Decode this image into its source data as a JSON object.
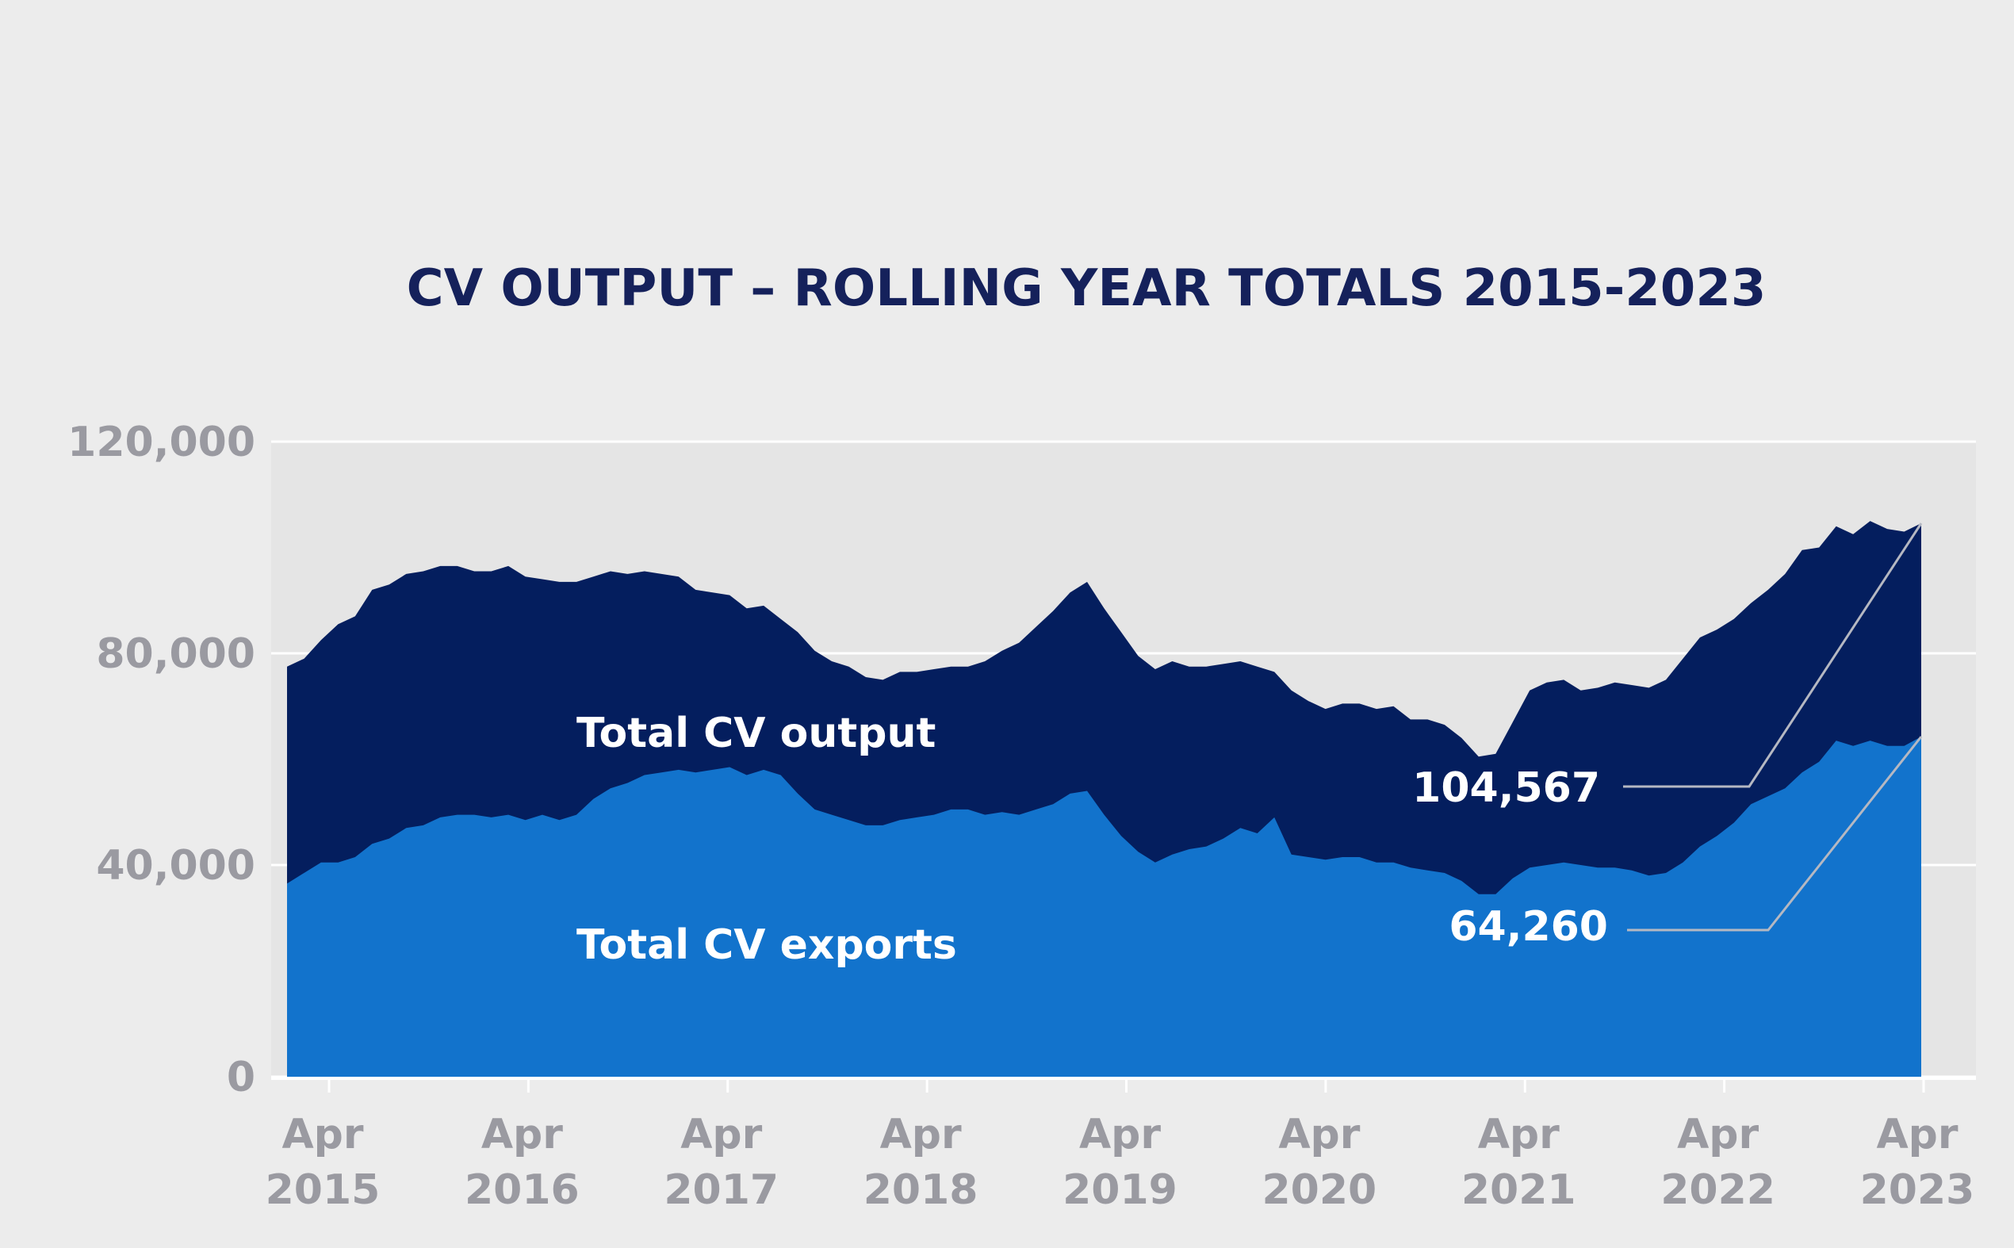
{
  "colors": {
    "background": "#ececec",
    "plot_background": "#e5e5e5",
    "gridline": "#ffffff",
    "title": "#15215b",
    "tick": "#9a9aa1",
    "output_area": "#041e5e",
    "exports_area": "#1273cc",
    "leader_line": "#b5b8c2"
  },
  "chart_data": {
    "type": "area",
    "title": "CV OUTPUT – ROLLING YEAR TOTALS 2015-2023",
    "xlabel": "",
    "ylabel": "",
    "ylim": [
      0,
      120000
    ],
    "xlim": [
      "2015-02",
      "2023-05"
    ],
    "y_ticks": [
      {
        "value": 0,
        "label": "0"
      },
      {
        "value": 40000,
        "label": "40,000"
      },
      {
        "value": 80000,
        "label": "80,000"
      },
      {
        "value": 120000,
        "label": "120,000"
      }
    ],
    "x_ticks": [
      {
        "date": "2015-04",
        "line1": "Apr",
        "line2": "2015"
      },
      {
        "date": "2016-04",
        "line1": "Apr",
        "line2": "2016"
      },
      {
        "date": "2017-04",
        "line1": "Apr",
        "line2": "2017"
      },
      {
        "date": "2018-04",
        "line1": "Apr",
        "line2": "2018"
      },
      {
        "date": "2019-04",
        "line1": "Apr",
        "line2": "2019"
      },
      {
        "date": "2020-04",
        "line1": "Apr",
        "line2": "2020"
      },
      {
        "date": "2021-04",
        "line1": "Apr",
        "line2": "2021"
      },
      {
        "date": "2022-04",
        "line1": "Apr",
        "line2": "2022"
      },
      {
        "date": "2023-04",
        "line1": "Apr",
        "line2": "2023"
      }
    ],
    "grid": true,
    "legend": "none",
    "series": [
      {
        "name": "Total CV output",
        "color": "#041e5e",
        "points": [
          [
            "2015-02",
            77500
          ],
          [
            "2015-03",
            79000
          ],
          [
            "2015-04",
            82500
          ],
          [
            "2015-05",
            85500
          ],
          [
            "2015-06",
            87000
          ],
          [
            "2015-07",
            92000
          ],
          [
            "2015-08",
            93000
          ],
          [
            "2015-09",
            95000
          ],
          [
            "2015-10",
            95500
          ],
          [
            "2015-11",
            96500
          ],
          [
            "2015-12",
            96500
          ],
          [
            "2016-01",
            95500
          ],
          [
            "2016-02",
            95500
          ],
          [
            "2016-03",
            96500
          ],
          [
            "2016-04",
            94500
          ],
          [
            "2016-05",
            94000
          ],
          [
            "2016-06",
            93500
          ],
          [
            "2016-07",
            93500
          ],
          [
            "2016-08",
            94500
          ],
          [
            "2016-09",
            95500
          ],
          [
            "2016-10",
            95000
          ],
          [
            "2016-11",
            95500
          ],
          [
            "2016-12",
            95000
          ],
          [
            "2017-01",
            94500
          ],
          [
            "2017-02",
            92000
          ],
          [
            "2017-03",
            91500
          ],
          [
            "2017-04",
            91000
          ],
          [
            "2017-05",
            88500
          ],
          [
            "2017-06",
            89000
          ],
          [
            "2017-07",
            86500
          ],
          [
            "2017-08",
            84000
          ],
          [
            "2017-09",
            80500
          ],
          [
            "2017-10",
            78500
          ],
          [
            "2017-11",
            77500
          ],
          [
            "2017-12",
            75500
          ],
          [
            "2018-01",
            75000
          ],
          [
            "2018-02",
            76500
          ],
          [
            "2018-03",
            76500
          ],
          [
            "2018-04",
            77000
          ],
          [
            "2018-05",
            77500
          ],
          [
            "2018-06",
            77500
          ],
          [
            "2018-07",
            78500
          ],
          [
            "2018-08",
            80500
          ],
          [
            "2018-09",
            82000
          ],
          [
            "2018-10",
            85000
          ],
          [
            "2018-11",
            88000
          ],
          [
            "2018-12",
            91500
          ],
          [
            "2019-01",
            93500
          ],
          [
            "2019-02",
            88500
          ],
          [
            "2019-03",
            84000
          ],
          [
            "2019-04",
            79500
          ],
          [
            "2019-05",
            77000
          ],
          [
            "2019-06",
            78500
          ],
          [
            "2019-07",
            77500
          ],
          [
            "2019-08",
            77500
          ],
          [
            "2019-09",
            78000
          ],
          [
            "2019-10",
            78500
          ],
          [
            "2019-11",
            77500
          ],
          [
            "2019-12",
            76500
          ],
          [
            "2020-01",
            73000
          ],
          [
            "2020-02",
            71000
          ],
          [
            "2020-03",
            69500
          ],
          [
            "2020-04",
            70500
          ],
          [
            "2020-05",
            70500
          ],
          [
            "2020-06",
            69500
          ],
          [
            "2020-07",
            70000
          ],
          [
            "2020-08",
            67500
          ],
          [
            "2020-09",
            67500
          ],
          [
            "2020-10",
            66500
          ],
          [
            "2020-11",
            64000
          ],
          [
            "2020-12",
            60500
          ],
          [
            "2021-01",
            61000
          ],
          [
            "2021-02",
            67000
          ],
          [
            "2021-03",
            73000
          ],
          [
            "2021-04",
            74500
          ],
          [
            "2021-05",
            75000
          ],
          [
            "2021-06",
            73000
          ],
          [
            "2021-07",
            73500
          ],
          [
            "2021-08",
            74500
          ],
          [
            "2021-09",
            74000
          ],
          [
            "2021-10",
            73500
          ],
          [
            "2021-11",
            75000
          ],
          [
            "2021-12",
            79000
          ],
          [
            "2022-01",
            83000
          ],
          [
            "2022-02",
            84500
          ],
          [
            "2022-03",
            86500
          ],
          [
            "2022-04",
            89500
          ],
          [
            "2022-05",
            92000
          ],
          [
            "2022-06",
            95000
          ],
          [
            "2022-07",
            99500
          ],
          [
            "2022-08",
            100000
          ],
          [
            "2022-09",
            104000
          ],
          [
            "2022-10",
            102500
          ],
          [
            "2022-11",
            105000
          ],
          [
            "2022-12",
            103500
          ],
          [
            "2023-01",
            103000
          ],
          [
            "2023-02",
            104567
          ]
        ]
      },
      {
        "name": "Total CV exports",
        "color": "#1273cc",
        "points": [
          [
            "2015-02",
            36500
          ],
          [
            "2015-03",
            38500
          ],
          [
            "2015-04",
            40500
          ],
          [
            "2015-05",
            40500
          ],
          [
            "2015-06",
            41500
          ],
          [
            "2015-07",
            44000
          ],
          [
            "2015-08",
            45000
          ],
          [
            "2015-09",
            47000
          ],
          [
            "2015-10",
            47500
          ],
          [
            "2015-11",
            49000
          ],
          [
            "2015-12",
            49500
          ],
          [
            "2016-01",
            49500
          ],
          [
            "2016-02",
            49000
          ],
          [
            "2016-03",
            49500
          ],
          [
            "2016-04",
            48500
          ],
          [
            "2016-05",
            49500
          ],
          [
            "2016-06",
            48500
          ],
          [
            "2016-07",
            49500
          ],
          [
            "2016-08",
            52500
          ],
          [
            "2016-09",
            54500
          ],
          [
            "2016-10",
            55500
          ],
          [
            "2016-11",
            57000
          ],
          [
            "2016-12",
            57500
          ],
          [
            "2017-01",
            58000
          ],
          [
            "2017-02",
            57500
          ],
          [
            "2017-03",
            58000
          ],
          [
            "2017-04",
            58500
          ],
          [
            "2017-05",
            57000
          ],
          [
            "2017-06",
            58000
          ],
          [
            "2017-07",
            57000
          ],
          [
            "2017-08",
            53500
          ],
          [
            "2017-09",
            50500
          ],
          [
            "2017-10",
            49500
          ],
          [
            "2017-11",
            48500
          ],
          [
            "2017-12",
            47500
          ],
          [
            "2018-01",
            47500
          ],
          [
            "2018-02",
            48500
          ],
          [
            "2018-03",
            49000
          ],
          [
            "2018-04",
            49500
          ],
          [
            "2018-05",
            50500
          ],
          [
            "2018-06",
            50500
          ],
          [
            "2018-07",
            49500
          ],
          [
            "2018-08",
            50000
          ],
          [
            "2018-09",
            49500
          ],
          [
            "2018-10",
            50500
          ],
          [
            "2018-11",
            51500
          ],
          [
            "2018-12",
            53500
          ],
          [
            "2019-01",
            54000
          ],
          [
            "2019-02",
            49500
          ],
          [
            "2019-03",
            45500
          ],
          [
            "2019-04",
            42500
          ],
          [
            "2019-05",
            40500
          ],
          [
            "2019-06",
            42000
          ],
          [
            "2019-07",
            43000
          ],
          [
            "2019-08",
            43500
          ],
          [
            "2019-09",
            45000
          ],
          [
            "2019-10",
            47000
          ],
          [
            "2019-11",
            46000
          ],
          [
            "2019-12",
            49000
          ],
          [
            "2020-01",
            42000
          ],
          [
            "2020-02",
            41500
          ],
          [
            "2020-03",
            41000
          ],
          [
            "2020-04",
            41500
          ],
          [
            "2020-05",
            41500
          ],
          [
            "2020-06",
            40500
          ],
          [
            "2020-07",
            40500
          ],
          [
            "2020-08",
            39500
          ],
          [
            "2020-09",
            39000
          ],
          [
            "2020-10",
            38500
          ],
          [
            "2020-11",
            37000
          ],
          [
            "2020-12",
            34500
          ],
          [
            "2021-01",
            34500
          ],
          [
            "2021-02",
            37500
          ],
          [
            "2021-03",
            39500
          ],
          [
            "2021-04",
            40000
          ],
          [
            "2021-05",
            40500
          ],
          [
            "2021-06",
            40000
          ],
          [
            "2021-07",
            39500
          ],
          [
            "2021-08",
            39500
          ],
          [
            "2021-09",
            39000
          ],
          [
            "2021-10",
            38000
          ],
          [
            "2021-11",
            38500
          ],
          [
            "2021-12",
            40500
          ],
          [
            "2022-01",
            43500
          ],
          [
            "2022-02",
            45500
          ],
          [
            "2022-03",
            48000
          ],
          [
            "2022-04",
            51500
          ],
          [
            "2022-05",
            53000
          ],
          [
            "2022-06",
            54500
          ],
          [
            "2022-07",
            57500
          ],
          [
            "2022-08",
            59500
          ],
          [
            "2022-09",
            63500
          ],
          [
            "2022-10",
            62500
          ],
          [
            "2022-11",
            63500
          ],
          [
            "2022-12",
            62500
          ],
          [
            "2023-01",
            62500
          ],
          [
            "2023-02",
            64260
          ]
        ]
      }
    ],
    "annotations": [
      {
        "text": "Total CV output",
        "series": 0,
        "anchor": "2016-07",
        "value": 65000
      },
      {
        "text": "Total CV exports",
        "series": 1,
        "anchor": "2016-07",
        "value": 25000
      },
      {
        "text": "104,567",
        "series": 0,
        "callout_value": 104567
      },
      {
        "text": "64,260",
        "series": 1,
        "callout_value": 64260
      }
    ]
  }
}
